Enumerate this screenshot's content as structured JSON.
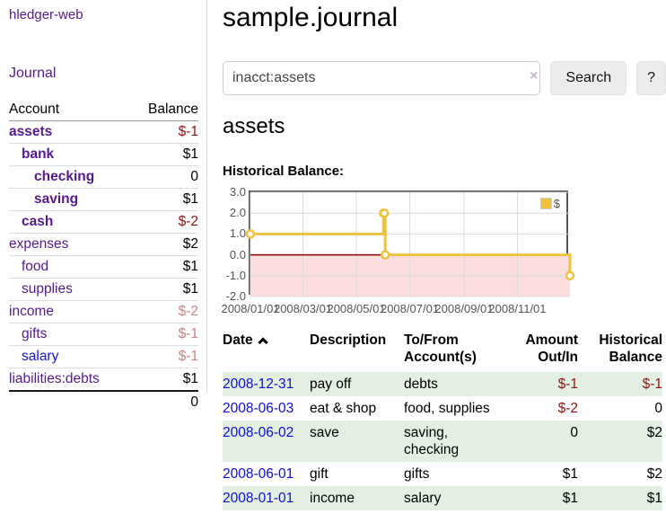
{
  "app": {
    "brand": "hledger-web"
  },
  "sidebar": {
    "journal_link": "Journal",
    "accounts": {
      "header_account": "Account",
      "header_balance": "Balance",
      "rows": [
        {
          "name": "assets",
          "balance": "$-1",
          "depth": 1,
          "bold": true
        },
        {
          "name": "bank",
          "balance": "$1",
          "depth": 2,
          "bold": true
        },
        {
          "name": "checking",
          "balance": "0",
          "depth": 3,
          "bold": true
        },
        {
          "name": "saving",
          "balance": "$1",
          "depth": 3,
          "bold": true
        },
        {
          "name": "cash",
          "balance": "$-2",
          "depth": 2,
          "bold": true
        },
        {
          "name": "expenses",
          "balance": "$2",
          "depth": 1,
          "bold": false
        },
        {
          "name": "food",
          "balance": "$1",
          "depth": 2,
          "bold": false
        },
        {
          "name": "supplies",
          "balance": "$1",
          "depth": 2,
          "bold": false
        },
        {
          "name": "income",
          "balance": "$-2",
          "depth": 1,
          "bold": false
        },
        {
          "name": "gifts",
          "balance": "$-1",
          "depth": 2,
          "bold": false
        },
        {
          "name": "salary",
          "balance": "$-1",
          "depth": 2,
          "bold": false,
          "unvisited": true
        },
        {
          "name": "liabilities:debts",
          "balance": "$1",
          "depth": 1,
          "bold": false
        }
      ],
      "total": "0"
    }
  },
  "header": {
    "title": "sample.journal"
  },
  "search": {
    "value": "inacct:assets",
    "clear_icon": "×",
    "search_button": "Search",
    "help_button": "?"
  },
  "account_page": {
    "title": "assets",
    "chart_label": "Historical Balance:"
  },
  "chart_data": {
    "type": "line",
    "step": true,
    "title": "Historical Balance:",
    "series": [
      {
        "name": "$",
        "color": "#edc240",
        "points": [
          [
            "2008-01-01",
            1
          ],
          [
            "2008-06-01",
            2
          ],
          [
            "2008-06-02",
            2
          ],
          [
            "2008-06-03",
            0
          ],
          [
            "2008-12-31",
            -1
          ]
        ]
      }
    ],
    "x_domain": [
      "2008-01-01",
      "2008-12-31"
    ],
    "x_tick_labels": [
      "2008/01/01",
      "2008/03/01",
      "2008/05/01",
      "2008/07/01",
      "2008/09/01",
      "2008/11/01"
    ],
    "y_tick_labels": [
      "3.0",
      "2.0",
      "1.0",
      "0.0",
      "-1.0",
      "-2.0"
    ],
    "ylim": [
      -2,
      3
    ],
    "grid": true,
    "legend_position": "top-right",
    "negative_region_color": "#fbdede",
    "zero_line_color": "#8b0000",
    "grid_line_color": "#dcdcdc"
  },
  "register": {
    "headers": {
      "date": "Date",
      "description": "Description",
      "tofrom": "To/From\nAccount(s)",
      "amount": "Amount\nOut/In",
      "balance": "Historical\nBalance"
    },
    "rows": [
      {
        "date": "2008-12-31",
        "description": "pay off",
        "accounts": "debts",
        "amount": "$-1",
        "balance": "$-1"
      },
      {
        "date": "2008-06-03",
        "description": "eat & shop",
        "accounts": "food, supplies",
        "amount": "$-2",
        "balance": "0"
      },
      {
        "date": "2008-06-02",
        "description": "save",
        "accounts": "saving,\nchecking",
        "amount": "0",
        "balance": "$2"
      },
      {
        "date": "2008-06-01",
        "description": "gift",
        "accounts": "gifts",
        "amount": "$1",
        "balance": "$2"
      },
      {
        "date": "2008-01-01",
        "description": "income",
        "accounts": "salary",
        "amount": "$1",
        "balance": "$1"
      }
    ]
  },
  "colors": {
    "link_purple": "#551a8b",
    "link_blue": "#1414cc",
    "negative": "#8b1414",
    "negative_dim": "#c48686",
    "row_green": "#e2efe2",
    "axis_text": "#545454",
    "series_yellow": "#edc240"
  }
}
